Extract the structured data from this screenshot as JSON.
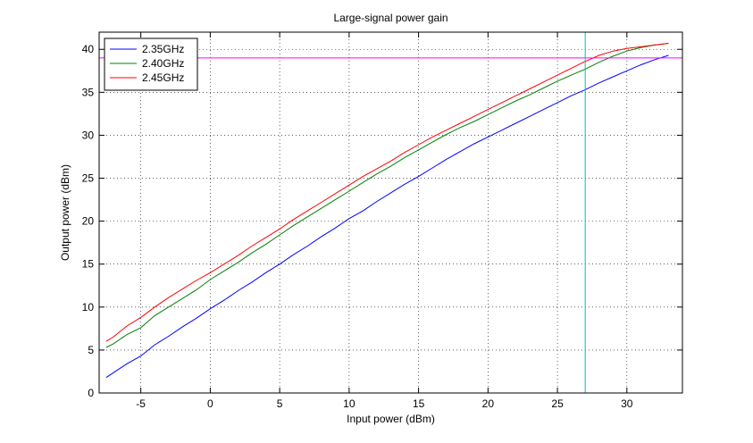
{
  "chart_data": {
    "type": "line",
    "title": "Large-signal power gain",
    "xlabel": "Input power (dBm)",
    "ylabel": "Output power (dBm)",
    "xlim": [
      -8,
      34
    ],
    "ylim": [
      0,
      42
    ],
    "xticks": [
      -5,
      0,
      5,
      10,
      15,
      20,
      25,
      30
    ],
    "yticks": [
      0,
      5,
      10,
      15,
      20,
      25,
      30,
      35,
      40
    ],
    "grid": true,
    "legend_position": "top-left",
    "series": [
      {
        "name": "2.35GHz",
        "color": "#0000ff",
        "x": [
          -7.5,
          -6,
          -5,
          -4,
          -3,
          -2,
          -1,
          0,
          1,
          2,
          3,
          4,
          5,
          6,
          7,
          8,
          9,
          10,
          11,
          12,
          13,
          14,
          15,
          16,
          17,
          18,
          19,
          20,
          21,
          22,
          23,
          24,
          25,
          26,
          27,
          28,
          29,
          30,
          31,
          32,
          33
        ],
        "y": [
          1.8,
          3.4,
          4.3,
          5.6,
          6.6,
          7.7,
          8.7,
          9.8,
          10.8,
          11.9,
          12.9,
          14.0,
          15.0,
          16.1,
          17.1,
          18.2,
          19.2,
          20.3,
          21.2,
          22.3,
          23.3,
          24.3,
          25.2,
          26.2,
          27.2,
          28.1,
          29.0,
          29.8,
          30.6,
          31.4,
          32.2,
          33.0,
          33.8,
          34.6,
          35.3,
          36.1,
          36.8,
          37.5,
          38.2,
          38.8,
          39.3
        ]
      },
      {
        "name": "2.40GHz",
        "color": "#008000",
        "x": [
          -7.5,
          -7,
          -6,
          -5,
          -4,
          -3,
          -2,
          -1,
          0,
          1,
          2,
          3,
          4,
          5,
          6,
          7,
          8,
          9,
          10,
          11,
          12,
          13,
          14,
          15,
          16,
          17,
          18,
          19,
          20,
          21,
          22,
          23,
          24,
          25,
          26,
          27,
          28,
          29,
          30,
          31,
          32,
          33
        ],
        "y": [
          5.3,
          5.7,
          6.8,
          7.6,
          9.0,
          10.0,
          11.0,
          12.0,
          13.2,
          14.2,
          15.2,
          16.3,
          17.3,
          18.4,
          19.5,
          20.5,
          21.5,
          22.5,
          23.5,
          24.5,
          25.5,
          26.4,
          27.4,
          28.3,
          29.2,
          30.1,
          30.9,
          31.6,
          32.4,
          33.2,
          34.0,
          34.7,
          35.5,
          36.3,
          37.0,
          37.7,
          38.5,
          39.2,
          39.8,
          40.2,
          40.5,
          40.7
        ]
      },
      {
        "name": "2.45GHz",
        "color": "#ff0000",
        "x": [
          -7.5,
          -7,
          -6,
          -5,
          -4,
          -3,
          -2,
          -1,
          0,
          1,
          2,
          3,
          4,
          5,
          6,
          7,
          8,
          9,
          10,
          11,
          12,
          13,
          14,
          15,
          16,
          17,
          18,
          19,
          20,
          21,
          22,
          23,
          24,
          25,
          26,
          27,
          28,
          29,
          30,
          31,
          32,
          33
        ],
        "y": [
          6.0,
          6.5,
          7.8,
          8.8,
          10.0,
          11.1,
          12.1,
          13.1,
          14.0,
          15.0,
          16.0,
          17.1,
          18.1,
          19.1,
          20.2,
          21.2,
          22.2,
          23.2,
          24.2,
          25.2,
          26.1,
          27.0,
          28.0,
          28.9,
          29.8,
          30.6,
          31.4,
          32.2,
          33.0,
          33.8,
          34.6,
          35.4,
          36.2,
          37.0,
          37.8,
          38.6,
          39.3,
          39.8,
          40.1,
          40.3,
          40.5,
          40.7
        ]
      }
    ],
    "reference_lines": [
      {
        "orientation": "horizontal",
        "value": 39,
        "color": "#ff00ff"
      },
      {
        "orientation": "vertical",
        "value": 27,
        "color": "#00bfbf"
      }
    ]
  }
}
